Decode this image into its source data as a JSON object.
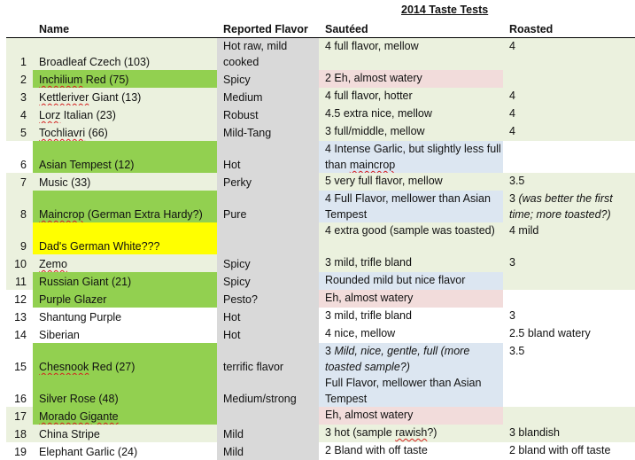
{
  "title": "2014 Taste Tests",
  "headers": {
    "num": "",
    "name": "Name",
    "flavor": "Reported Flavor",
    "sauteed": "Sautéed",
    "roasted": "Roasted"
  },
  "colors": {
    "light_green": "#ebf1de",
    "green": "#92d050",
    "yellow": "#ffff00",
    "gray": "#d9d9d9",
    "pink": "#f2dcdb",
    "blue": "#dce6f1",
    "white": "#ffffff"
  },
  "rows": [
    {
      "n": "1",
      "name": "Broadleaf Czech (103)",
      "flavor": "Hot raw, mild cooked",
      "saut": "4 full flavor, mellow",
      "roast": "4",
      "row": "light_green",
      "lines": 2
    },
    {
      "n": "2",
      "name": "Inchilium Red (75)",
      "flavor": "Spicy",
      "saut": "2 Eh, almost watery",
      "roast": "",
      "row": "light_green",
      "nameBg": "green",
      "sautBg": "pink",
      "sq": [
        "Inchilium"
      ]
    },
    {
      "n": "3",
      "name": "Kettleriver Giant (13)",
      "flavor": "Medium",
      "saut": "4 full flavor, hotter",
      "roast": "4",
      "row": "light_green",
      "sq": [
        "Kettleriver"
      ]
    },
    {
      "n": "4",
      "name": "Lorz Italian (23)",
      "flavor": "Robust",
      "saut": "4.5 extra nice, mellow",
      "roast": "4",
      "row": "light_green",
      "sq": [
        "Lorz"
      ]
    },
    {
      "n": "5",
      "name": "Tochliavri (66)",
      "flavor": "Mild-Tang",
      "saut": "3 full/middle, mellow",
      "roast": "4",
      "row": "light_green",
      "sq": [
        "Tochliavri"
      ]
    },
    {
      "n": "6",
      "name": "Asian Tempest (12)",
      "flavor": "Hot",
      "saut": "4 Intense Garlic, but slightly less full than maincrop",
      "roast": "",
      "row": "white",
      "nameBg": "green",
      "sautBg": "blue",
      "lines": 2,
      "sq": [
        "maincrop"
      ]
    },
    {
      "n": "7",
      "name": "Music (33)",
      "flavor": "Perky",
      "saut": "5 very full flavor, mellow",
      "roast": "3.5",
      "row": "light_green"
    },
    {
      "n": "8",
      "name": "Maincrop (German Extra Hardy?)",
      "flavor": "Pure",
      "saut": "4 Full Flavor, mellower than Asian Tempest",
      "roast": "3 ",
      "roastItalic": "(was better the first time; more toasted?)",
      "row": "light_green",
      "nameBg": "green",
      "sautBg": "blue",
      "lines": 2,
      "sq": [
        "Maincrop"
      ]
    },
    {
      "n": "9",
      "name": "Dad's German White???",
      "flavor": "",
      "saut": "4 extra good (sample was toasted)",
      "roast": "4 mild",
      "row": "light_green",
      "nameBg": "yellow",
      "lines": 2
    },
    {
      "n": "10",
      "name": "Zemo",
      "flavor": "Spicy",
      "saut": "3 mild, trifle bland",
      "roast": "3",
      "row": "light_green",
      "sq": [
        "Zemo"
      ]
    },
    {
      "n": "11",
      "name": "Russian Giant (21)",
      "flavor": "Spicy",
      "saut": "Rounded mild but nice flavor",
      "roast": "",
      "row": "light_green",
      "nameBg": "green",
      "sautBg": "blue"
    },
    {
      "n": "12",
      "name": "Purple Glazer",
      "flavor": "Pesto?",
      "saut": "Eh, almost watery",
      "roast": "",
      "row": "white",
      "nameBg": "green",
      "sautBg": "pink"
    },
    {
      "n": "13",
      "name": "Shantung Purple",
      "flavor": "Hot",
      "saut": "3 mild, trifle bland",
      "roast": "3",
      "row": "white"
    },
    {
      "n": "14",
      "name": "Siberian",
      "flavor": "Hot",
      "saut": "4 nice, mellow",
      "roast": "2.5 bland watery",
      "row": "white"
    },
    {
      "n": "15",
      "name": "Chesnook Red (27)",
      "flavor": "terrific flavor",
      "saut": "3 ",
      "sautItalic": "Mild, nice, gentle, full (more toasted sample?)",
      "roast": "3.5",
      "row": "white",
      "nameBg": "green",
      "sautBg": "blue",
      "lines": 2,
      "sq": [
        "Chesnook"
      ]
    },
    {
      "n": "16",
      "name": "Silver Rose (48)",
      "flavor": "Medium/strong",
      "saut": "Full Flavor, mellower than Asian Tempest",
      "roast": "",
      "row": "white",
      "nameBg": "green",
      "sautBg": "blue",
      "lines": 2
    },
    {
      "n": "17",
      "name": "Morado Gigante",
      "flavor": "",
      "saut": "Eh, almost watery",
      "roast": "",
      "row": "light_green",
      "nameBg": "green",
      "sautBg": "pink",
      "sq": [
        "Morado Gigante"
      ]
    },
    {
      "n": "18",
      "name": "China Stripe",
      "flavor": "Mild",
      "saut": "3 hot (sample rawish?)",
      "roast": "3 blandish",
      "row": "light_green",
      "sq": [
        "rawish"
      ]
    },
    {
      "n": "19",
      "name": "Elephant Garlic (24)",
      "flavor": "Mild",
      "saut": "2 Bland with off taste",
      "roast": "2 bland with off taste",
      "row": "white"
    }
  ]
}
